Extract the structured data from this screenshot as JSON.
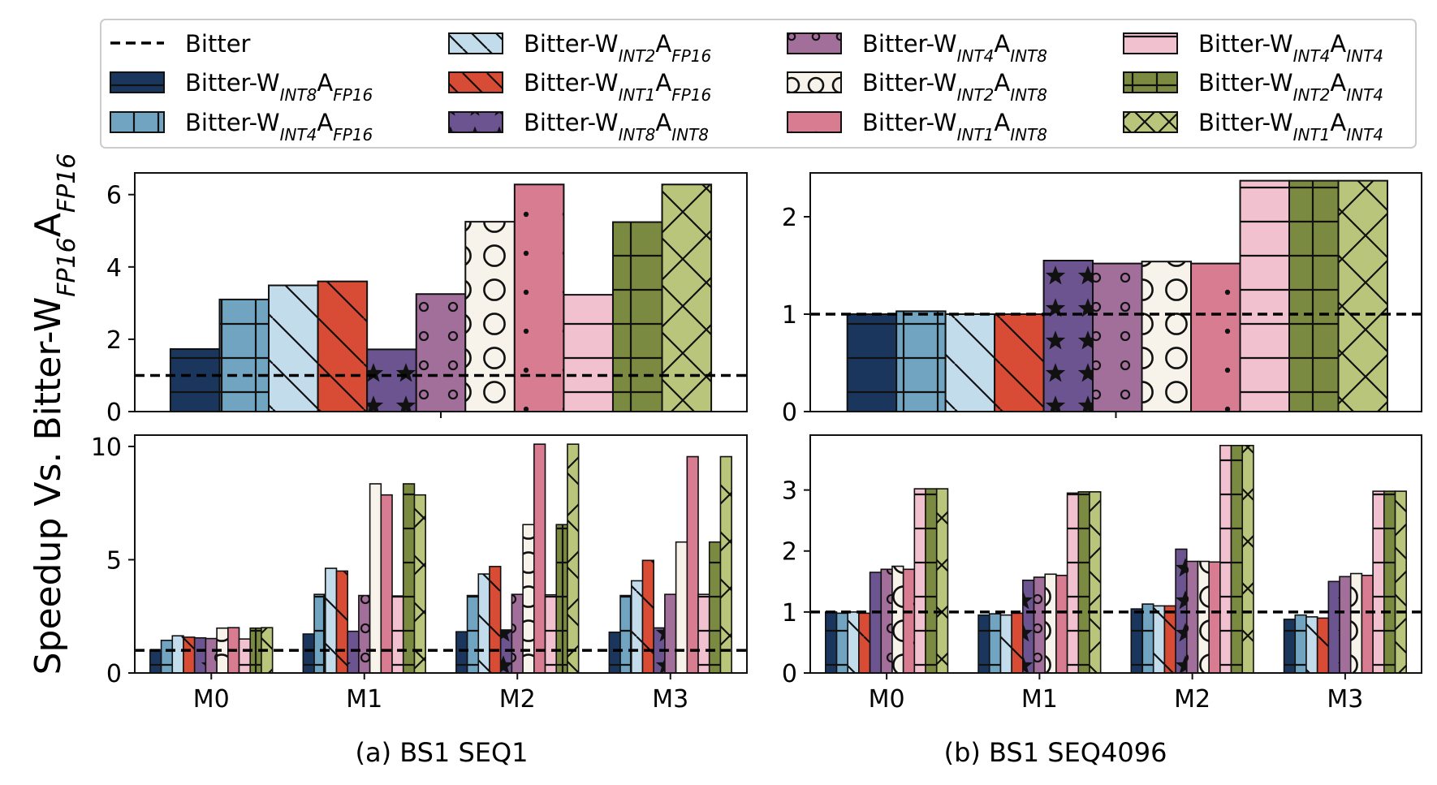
{
  "figure": {
    "ylabel_main": "Speedup Vs. Bitter-W",
    "ylabel_sub": "FP16",
    "ylabel_main2": "A",
    "ylabel_sub2": "FP16"
  },
  "legend": {
    "baseline": {
      "label": "Bitter",
      "color": "#000000",
      "style": "dashed"
    },
    "entries": [
      {
        "base": "Bitter-W",
        "w": "INT8",
        "a": "FP16",
        "color": "#1b365d",
        "hatch": "-"
      },
      {
        "base": "Bitter-W",
        "w": "INT4",
        "a": "FP16",
        "color": "#71a4c1",
        "hatch": "+"
      },
      {
        "base": "Bitter-W",
        "w": "INT2",
        "a": "FP16",
        "color": "#c3dceb",
        "hatch": "\\"
      },
      {
        "base": "Bitter-W",
        "w": "INT1",
        "a": "FP16",
        "color": "#d84b35",
        "hatch": "\\"
      },
      {
        "base": "Bitter-W",
        "w": "INT8",
        "a": "INT8",
        "color": "#6b548f",
        "hatch": "*"
      },
      {
        "base": "Bitter-W",
        "w": "INT4",
        "a": "INT8",
        "color": "#a26f9b",
        "hatch": "o"
      },
      {
        "base": "Bitter-W",
        "w": "INT2",
        "a": "INT8",
        "color": "#f7f3ea",
        "hatch": "O"
      },
      {
        "base": "Bitter-W",
        "w": "INT1",
        "a": "INT8",
        "color": "#d87c91",
        "hatch": "."
      },
      {
        "base": "Bitter-W",
        "w": "INT4",
        "a": "INT4",
        "color": "#f2c1cf",
        "hatch": "-"
      },
      {
        "base": "Bitter-W",
        "w": "INT2",
        "a": "INT4",
        "color": "#7b8a41",
        "hatch": "+"
      },
      {
        "base": "Bitter-W",
        "w": "INT1",
        "a": "INT4",
        "color": "#b9c57a",
        "hatch": "x"
      }
    ]
  },
  "chart_data": [
    {
      "type": "bar",
      "panel": "a-top",
      "xlabel": "",
      "ylim": [
        0,
        6.6
      ],
      "yticks": [
        0,
        2,
        4,
        6
      ],
      "baseline": 1.0,
      "values": [
        1.73,
        3.1,
        3.49,
        3.6,
        1.72,
        3.25,
        5.25,
        6.28,
        3.23,
        5.24,
        6.28
      ]
    },
    {
      "type": "bar",
      "panel": "b-top",
      "xlabel": "",
      "ylim": [
        0,
        2.45
      ],
      "yticks": [
        0,
        1,
        2
      ],
      "baseline": 1.0,
      "values": [
        1.0,
        1.03,
        1.0,
        1.0,
        1.55,
        1.52,
        1.54,
        1.52,
        2.37,
        2.37,
        2.37
      ]
    },
    {
      "type": "bar",
      "panel": "a-bottom",
      "caption": "(a) BS1 SEQ1",
      "categories": [
        "M0",
        "M1",
        "M2",
        "M3"
      ],
      "ylim": [
        0,
        10.5
      ],
      "yticks": [
        0,
        5,
        10
      ],
      "baseline": 1.0,
      "series_values": [
        [
          1.02,
          1.72,
          1.82,
          1.8
        ],
        [
          1.44,
          3.47,
          3.42,
          3.42
        ],
        [
          1.64,
          4.62,
          4.37,
          4.07
        ],
        [
          1.58,
          4.5,
          4.7,
          4.97
        ],
        [
          1.55,
          1.84,
          1.9,
          1.99
        ],
        [
          1.52,
          3.42,
          3.47,
          3.47
        ],
        [
          1.98,
          8.35,
          6.55,
          5.78
        ],
        [
          2.0,
          7.86,
          10.1,
          9.55
        ],
        [
          1.5,
          3.4,
          3.45,
          3.47
        ],
        [
          1.98,
          8.35,
          6.55,
          5.78
        ],
        [
          2.0,
          7.86,
          10.1,
          9.55
        ]
      ]
    },
    {
      "type": "bar",
      "panel": "b-bottom",
      "caption": "(b) BS1 SEQ4096",
      "categories": [
        "M0",
        "M1",
        "M2",
        "M3"
      ],
      "ylim": [
        0,
        3.9
      ],
      "yticks": [
        0,
        1,
        2,
        3
      ],
      "baseline": 1.0,
      "series_values": [
        [
          1.0,
          0.95,
          1.05,
          0.88
        ],
        [
          0.98,
          0.97,
          1.13,
          0.95
        ],
        [
          1.0,
          0.95,
          1.1,
          0.92
        ],
        [
          0.98,
          0.98,
          1.1,
          0.9
        ],
        [
          1.65,
          1.52,
          2.03,
          1.5
        ],
        [
          1.7,
          1.57,
          1.83,
          1.58
        ],
        [
          1.75,
          1.62,
          1.83,
          1.63
        ],
        [
          1.7,
          1.6,
          1.82,
          1.6
        ],
        [
          3.02,
          2.95,
          3.73,
          2.98
        ],
        [
          3.02,
          2.97,
          3.73,
          2.98
        ],
        [
          3.02,
          2.97,
          3.73,
          2.98
        ]
      ]
    }
  ]
}
